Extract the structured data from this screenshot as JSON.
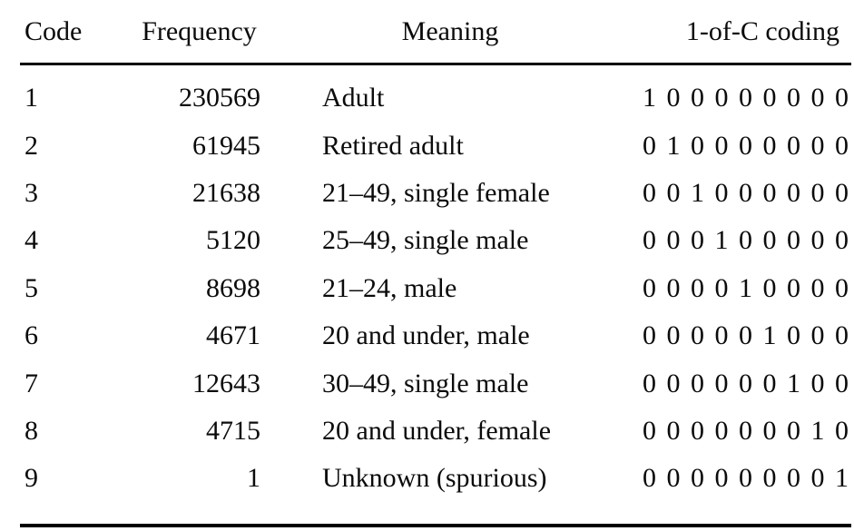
{
  "table": {
    "columns": {
      "code": "Code",
      "frequency": "Frequency",
      "meaning": "Meaning",
      "coding": "1-of-C coding"
    },
    "rows": [
      {
        "code": "1",
        "frequency": "230569",
        "meaning": "Adult",
        "coding": "1 0 0 0 0 0 0 0 0"
      },
      {
        "code": "2",
        "frequency": "61945",
        "meaning": "Retired adult",
        "coding": "0 1 0 0 0 0 0 0 0"
      },
      {
        "code": "3",
        "frequency": "21638",
        "meaning": "21–49, single female",
        "coding": "0 0 1 0 0 0 0 0 0"
      },
      {
        "code": "4",
        "frequency": "5120",
        "meaning": "25–49, single male",
        "coding": "0 0 0 1 0 0 0 0 0"
      },
      {
        "code": "5",
        "frequency": "8698",
        "meaning": "21–24, male",
        "coding": "0 0 0 0 1 0 0 0 0"
      },
      {
        "code": "6",
        "frequency": "4671",
        "meaning": "20 and under, male",
        "coding": "0 0 0 0 0 1 0 0 0"
      },
      {
        "code": "7",
        "frequency": "12643",
        "meaning": "30–49, single male",
        "coding": "0 0 0 0 0 0 1 0 0"
      },
      {
        "code": "8",
        "frequency": "4715",
        "meaning": "20 and under, female",
        "coding": "0 0 0 0 0 0 0 1 0"
      },
      {
        "code": "9",
        "frequency": "1",
        "meaning": "Unknown (spurious)",
        "coding": "0 0 0 0 0 0 0 0 1"
      }
    ],
    "colors": {
      "text": "#0b0b0b",
      "rule": "#000000",
      "background": "#ffffff"
    }
  }
}
